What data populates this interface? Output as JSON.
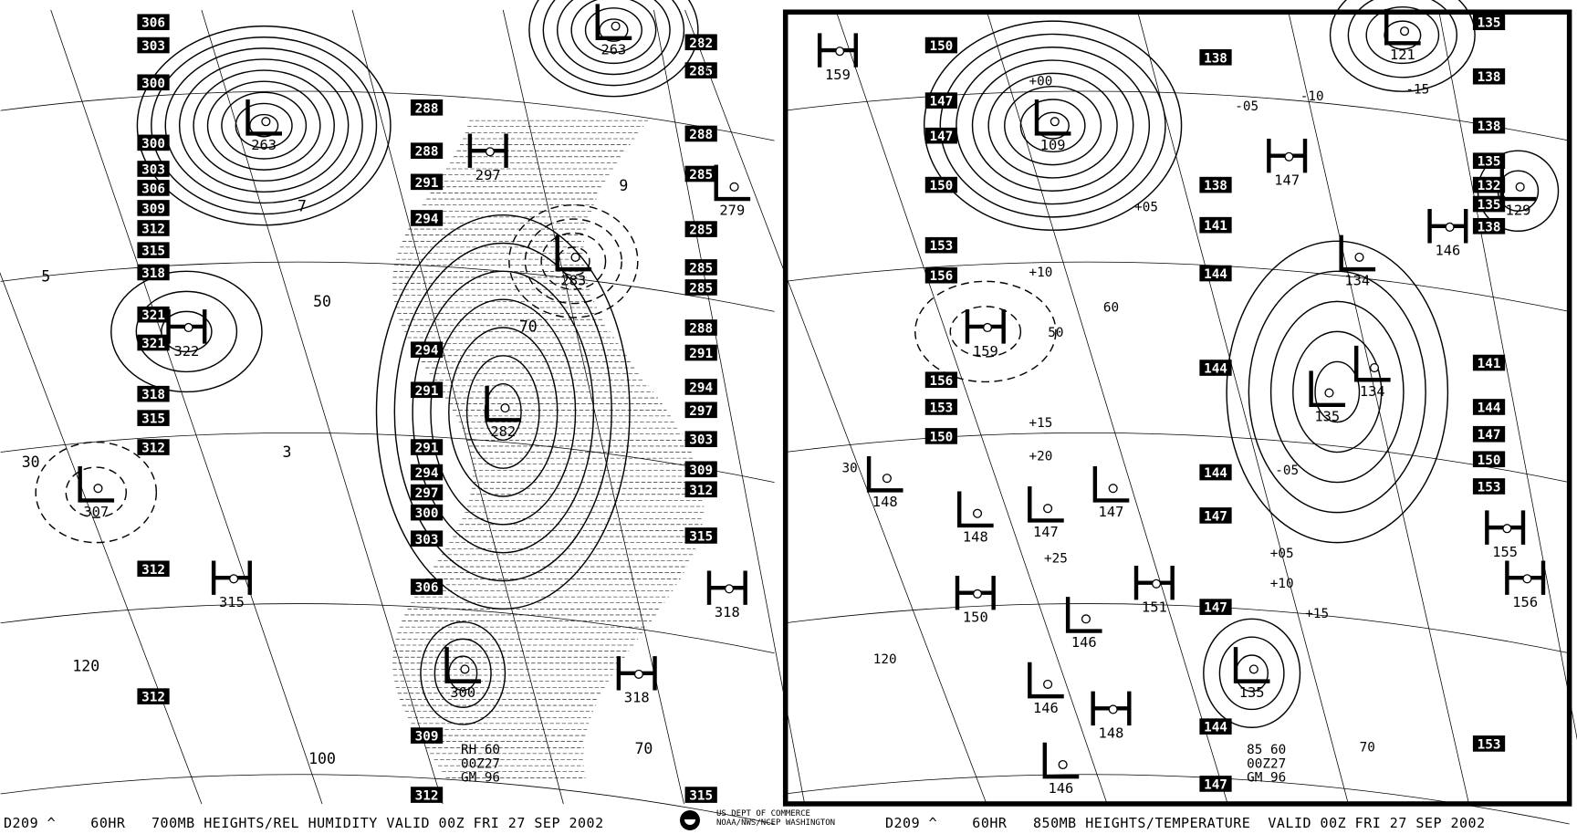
{
  "colors": {
    "ink": "#000000",
    "background": "#ffffff"
  },
  "left_panel": {
    "footer": "D209 ^    60HR   700MB HEIGHTS/REL HUMIDITY VALID 00Z FRI 27 SEP 2002",
    "legend": [
      "RH 60",
      "00Z27",
      "GM 96"
    ],
    "centers": [
      {
        "type": "L",
        "value": "263"
      },
      {
        "type": "L",
        "value": "263"
      },
      {
        "type": "H",
        "value": "297"
      },
      {
        "type": "L",
        "value": "279"
      },
      {
        "type": "L",
        "value": "283"
      },
      {
        "type": "H",
        "value": "322"
      },
      {
        "type": "L",
        "value": "282"
      },
      {
        "type": "L",
        "value": "307"
      },
      {
        "type": "H",
        "value": "315"
      },
      {
        "type": "L",
        "value": "300"
      },
      {
        "type": "H",
        "value": "318"
      },
      {
        "type": "H",
        "value": "318"
      }
    ],
    "height_labels": [
      "306",
      "303",
      "300",
      "300",
      "303",
      "306",
      "309",
      "312",
      "315",
      "318",
      "321",
      "321",
      "318",
      "315",
      "312",
      "312",
      "312",
      "288",
      "288",
      "291",
      "294",
      "294",
      "291",
      "291",
      "294",
      "297",
      "300",
      "303",
      "306",
      "309",
      "312",
      "282",
      "285",
      "288",
      "285",
      "285",
      "285",
      "285",
      "288",
      "291",
      "294",
      "297",
      "303",
      "309",
      "312",
      "315",
      "315"
    ],
    "rh_labels": [
      "7",
      "9",
      "5",
      "3",
      "50",
      "70",
      "30",
      "120",
      "100",
      "70"
    ]
  },
  "right_panel": {
    "footer": "D209 ^    60HR   850MB HEIGHTS/TEMPERATURE  VALID 00Z FRI 27 SEP 2002",
    "legend": [
      "85 60",
      "00Z27",
      "GM 96"
    ],
    "centers": [
      {
        "type": "H",
        "value": "159"
      },
      {
        "type": "L",
        "value": "109"
      },
      {
        "type": "L",
        "value": "121"
      },
      {
        "type": "H",
        "value": "147"
      },
      {
        "type": "L",
        "value": "129"
      },
      {
        "type": "H",
        "value": "146"
      },
      {
        "type": "L",
        "value": "134"
      },
      {
        "type": "H",
        "value": "159"
      },
      {
        "type": "L",
        "value": "135"
      },
      {
        "type": "L",
        "value": "134"
      },
      {
        "type": "L",
        "value": "148"
      },
      {
        "type": "L",
        "value": "148"
      },
      {
        "type": "L",
        "value": "147"
      },
      {
        "type": "L",
        "value": "147"
      },
      {
        "type": "H",
        "value": "150"
      },
      {
        "type": "H",
        "value": "151"
      },
      {
        "type": "L",
        "value": "146"
      },
      {
        "type": "L",
        "value": "146"
      },
      {
        "type": "H",
        "value": "148"
      },
      {
        "type": "L",
        "value": "135"
      },
      {
        "type": "H",
        "value": "155"
      },
      {
        "type": "H",
        "value": "156"
      },
      {
        "type": "L",
        "value": "146"
      }
    ],
    "height_labels": [
      "150",
      "147",
      "147",
      "150",
      "153",
      "156",
      "156",
      "153",
      "150",
      "138",
      "138",
      "141",
      "144",
      "144",
      "144",
      "147",
      "147",
      "144",
      "147",
      "135",
      "138",
      "138",
      "135",
      "132",
      "135",
      "138",
      "141",
      "144",
      "147",
      "150",
      "153",
      "153"
    ],
    "temp_labels": [
      "+00",
      "-05",
      "-10",
      "-15",
      "+05",
      "+10",
      "+15",
      "+20",
      "+25",
      "-05",
      "+05",
      "+10",
      "+15",
      "50",
      "60",
      "30",
      "120",
      "70"
    ]
  },
  "agency": {
    "line1": "US DEPT OF COMMERCE",
    "line2": "NOAA/NWS/NCEP WASHINGTON"
  }
}
